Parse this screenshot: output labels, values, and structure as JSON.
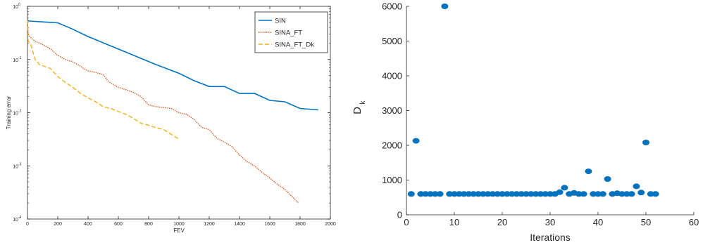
{
  "chart_data": [
    {
      "type": "line",
      "title": "",
      "xlabel": "FEV",
      "ylabel": "Training error",
      "xlim": [
        0,
        2000
      ],
      "ylim": [
        0.0001,
        1
      ],
      "yscale": "log",
      "grid": false,
      "legend_position": "top-right",
      "x_ticks": [
        "0",
        "200",
        "400",
        "600",
        "800",
        "1000",
        "1200",
        "1400",
        "1600",
        "1800",
        "2000"
      ],
      "y_ticks": [
        {
          "base": "10",
          "exp": "0"
        },
        {
          "base": "10",
          "exp": "-1"
        },
        {
          "base": "10",
          "exp": "-2"
        },
        {
          "base": "10",
          "exp": "-3"
        },
        {
          "base": "10",
          "exp": "-4"
        }
      ],
      "series": [
        {
          "name": "SIN",
          "color": "#0072BD",
          "style": "solid",
          "x": [
            0,
            10,
            50,
            100,
            200,
            300,
            400,
            530,
            700,
            850,
            1000,
            1100,
            1200,
            1300,
            1400,
            1500,
            1600,
            1700,
            1800,
            1920
          ],
          "y": [
            0.55,
            0.53,
            0.52,
            0.51,
            0.49,
            0.37,
            0.27,
            0.19,
            0.12,
            0.08,
            0.055,
            0.04,
            0.031,
            0.031,
            0.023,
            0.023,
            0.017,
            0.016,
            0.012,
            0.0113
          ]
        },
        {
          "name": "SINA_FT",
          "color": "#D95319",
          "style": "dotted",
          "x": [
            0,
            5,
            20,
            50,
            100,
            150,
            200,
            250,
            300,
            350,
            370,
            400,
            450,
            500,
            530,
            550,
            600,
            650,
            700,
            750,
            800,
            850,
            900,
            950,
            1000,
            1050,
            1100,
            1150,
            1200,
            1250,
            1300,
            1350,
            1400,
            1450,
            1500,
            1550,
            1600,
            1650,
            1700,
            1750,
            1790
          ],
          "y": [
            0.5,
            0.3,
            0.26,
            0.22,
            0.19,
            0.16,
            0.12,
            0.1,
            0.09,
            0.075,
            0.068,
            0.061,
            0.057,
            0.052,
            0.04,
            0.036,
            0.03,
            0.027,
            0.024,
            0.02,
            0.014,
            0.013,
            0.0125,
            0.012,
            0.01,
            0.0093,
            0.0075,
            0.0053,
            0.0048,
            0.0033,
            0.0028,
            0.0023,
            0.0016,
            0.0012,
            0.001,
            0.00075,
            0.00059,
            0.00045,
            0.00036,
            0.00026,
            0.0002
          ]
        },
        {
          "name": "SINA_FT_Dk",
          "color": "#EDB120",
          "style": "dashed",
          "x": [
            0,
            5,
            20,
            50,
            80,
            150,
            200,
            250,
            300,
            350,
            400,
            450,
            500,
            550,
            600,
            650,
            700,
            750,
            800,
            850,
            900,
            950,
            1000
          ],
          "y": [
            0.55,
            0.22,
            0.2,
            0.1,
            0.08,
            0.068,
            0.048,
            0.037,
            0.03,
            0.023,
            0.019,
            0.016,
            0.013,
            0.012,
            0.0105,
            0.0093,
            0.0078,
            0.0063,
            0.0058,
            0.0052,
            0.0048,
            0.0039,
            0.0032
          ]
        }
      ]
    },
    {
      "type": "scatter",
      "title": "",
      "xlabel": "Iterations",
      "ylabel": {
        "base": "D",
        "sub": "k"
      },
      "xlim": [
        0,
        60
      ],
      "ylim": [
        0,
        6000
      ],
      "grid": false,
      "x_ticks": [
        "0",
        "10",
        "20",
        "30",
        "40",
        "50",
        "60"
      ],
      "y_ticks": [
        "0",
        "1000",
        "2000",
        "3000",
        "4000",
        "5000",
        "6000"
      ],
      "series": [
        {
          "color": "#0072BD",
          "x": [
            1,
            2,
            3,
            4,
            5,
            6,
            7,
            8,
            9,
            10,
            11,
            12,
            13,
            14,
            15,
            16,
            17,
            18,
            19,
            20,
            21,
            22,
            23,
            24,
            25,
            26,
            27,
            28,
            29,
            30,
            31,
            32,
            33,
            34,
            35,
            36,
            37,
            38,
            39,
            40,
            41,
            42,
            43,
            44,
            45,
            46,
            47,
            48,
            49,
            50,
            51,
            52
          ],
          "y": [
            600,
            2130,
            600,
            600,
            600,
            600,
            600,
            6000,
            600,
            600,
            600,
            600,
            600,
            600,
            600,
            600,
            600,
            600,
            600,
            600,
            600,
            600,
            600,
            600,
            600,
            600,
            600,
            600,
            600,
            600,
            600,
            650,
            780,
            600,
            630,
            600,
            600,
            1250,
            600,
            600,
            600,
            1030,
            600,
            620,
            600,
            600,
            600,
            820,
            640,
            2080,
            600,
            600
          ]
        }
      ]
    }
  ]
}
